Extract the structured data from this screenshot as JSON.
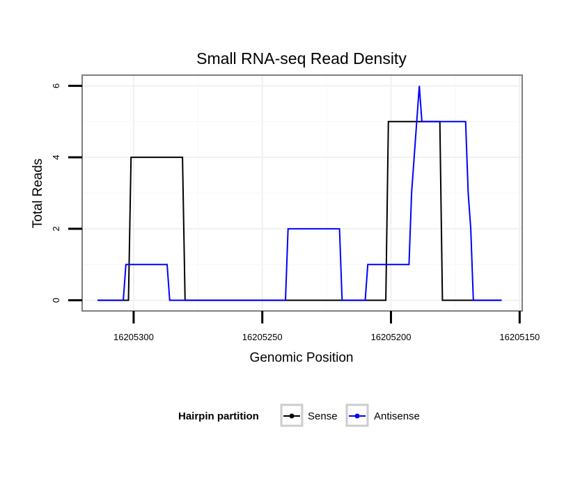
{
  "chart_data": {
    "type": "line",
    "title": "Small RNA-seq Read Density",
    "xlabel": "Genomic Position",
    "ylabel": "Total Reads",
    "x_reversed": true,
    "xlim": [
      16205320,
      16205149
    ],
    "ylim": [
      -0.3,
      6.3
    ],
    "x_ticks": [
      16205300,
      16205250,
      16205200,
      16205150
    ],
    "x_tick_labels": [
      "16205300",
      "16205250",
      "16205200",
      "16205150"
    ],
    "y_ticks": [
      0,
      2,
      4,
      6
    ],
    "y_tick_labels": [
      "0",
      "2",
      "4",
      "6"
    ],
    "grid": true,
    "legend": {
      "title": "Hairpin partition",
      "position": "bottom",
      "entries": [
        "Sense",
        "Antisense"
      ]
    },
    "series": [
      {
        "name": "Sense",
        "color": "#000000",
        "x": [
          16205314,
          16205302,
          16205301,
          16205281,
          16205280,
          16205202,
          16205201,
          16205181,
          16205180,
          16205157
        ],
        "y": [
          0,
          0,
          4,
          4,
          0,
          0,
          5,
          5,
          0,
          0
        ]
      },
      {
        "name": "Antisense",
        "color": "#0000ff",
        "x": [
          16205314,
          16205304,
          16205303,
          16205287,
          16205286,
          16205274,
          16205241,
          16205240,
          16205220,
          16205219,
          16205210,
          16205209,
          16205193,
          16205192,
          16205191,
          16205189,
          16205188,
          16205171,
          16205170,
          16205169,
          16205168,
          16205165,
          16205160,
          16205157
        ],
        "y": [
          0,
          0,
          1,
          1,
          0,
          0,
          0,
          2,
          2,
          0,
          0,
          1,
          1,
          3,
          4,
          6,
          5,
          5,
          3,
          2,
          0,
          0,
          0,
          0
        ]
      }
    ]
  }
}
